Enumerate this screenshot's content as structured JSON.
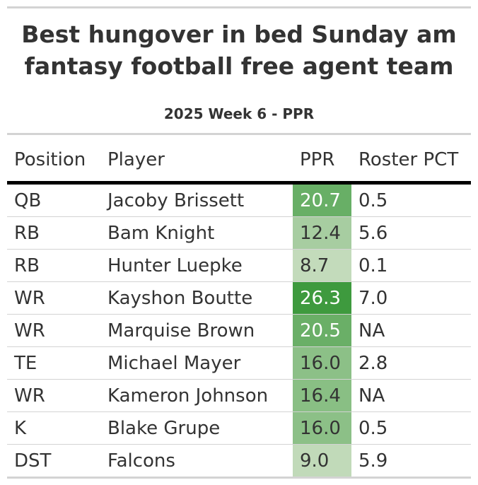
{
  "chart_data": {
    "type": "table",
    "title_lines": [
      "Best hungover in bed Sunday am",
      "fantasy football free agent team"
    ],
    "subtitle": "2025 Week 6 - PPR",
    "columns": [
      "Position",
      "Player",
      "PPR",
      "Roster PCT"
    ],
    "rows": [
      {
        "position": "QB",
        "player": "Jacoby Brissett",
        "ppr": "20.7",
        "roster_pct": "0.5"
      },
      {
        "position": "RB",
        "player": "Bam Knight",
        "ppr": "12.4",
        "roster_pct": "5.6"
      },
      {
        "position": "RB",
        "player": "Hunter Luepke",
        "ppr": "8.7",
        "roster_pct": "0.1"
      },
      {
        "position": "WR",
        "player": "Kayshon Boutte",
        "ppr": "26.3",
        "roster_pct": "7.0"
      },
      {
        "position": "WR",
        "player": "Marquise Brown",
        "ppr": "20.5",
        "roster_pct": "NA"
      },
      {
        "position": "TE",
        "player": "Michael Mayer",
        "ppr": "16.0",
        "roster_pct": "2.8"
      },
      {
        "position": "WR",
        "player": "Kameron Johnson",
        "ppr": "16.4",
        "roster_pct": "NA"
      },
      {
        "position": "K",
        "player": "Blake Grupe",
        "ppr": "16.0",
        "roster_pct": "0.5"
      },
      {
        "position": "DST",
        "player": "Falcons",
        "ppr": "9.0",
        "roster_pct": "5.9"
      }
    ],
    "ppr_color_scale": {
      "low": "#c3dbbb",
      "high": "#3e9a3e"
    }
  }
}
